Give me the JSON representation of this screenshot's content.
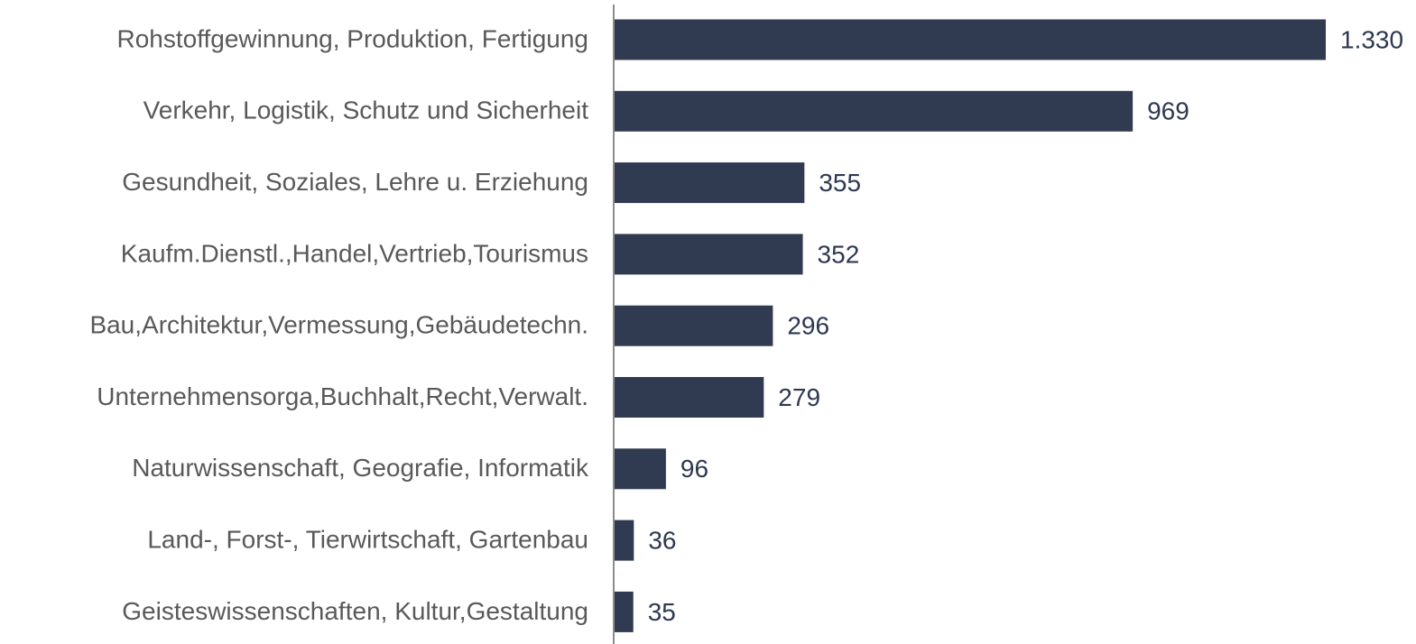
{
  "chart_data": {
    "type": "hbar",
    "categories": [
      "Rohstoffgewinnung, Produktion, Fertigung",
      "Verkehr, Logistik, Schutz und Sicherheit",
      "Gesundheit, Soziales, Lehre u. Erziehung",
      "Kaufm.Dienstl.,Handel,Vertrieb,Tourismus",
      "Bau,Architektur,Vermessung,Gebäudetechn.",
      "Unternehmensorga,Buchhalt,Recht,Verwalt.",
      "Naturwissenschaft, Geografie, Informatik",
      "Land-, Forst-, Tierwirtschaft, Gartenbau",
      "Geisteswissenschaften, Kultur,Gestaltung"
    ],
    "values": [
      1330,
      969,
      355,
      352,
      296,
      279,
      96,
      36,
      35
    ],
    "value_labels": [
      "1.330",
      "969",
      "355",
      "352",
      "296",
      "279",
      "96",
      "36",
      "35"
    ],
    "color": "#303a50"
  }
}
